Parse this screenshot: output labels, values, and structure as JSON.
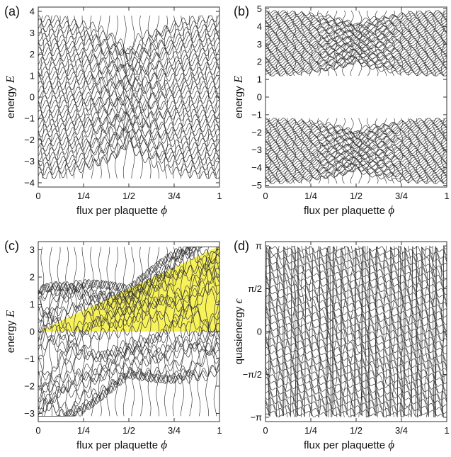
{
  "chart_data": [
    {
      "panel": "(a)",
      "type": "line",
      "xlabel": "flux per plaquette",
      "xlabel_symbol": "ϕ",
      "ylabel": "energy",
      "ylabel_symbol": "E",
      "xlim": [
        0,
        1
      ],
      "ylim": [
        -4.2,
        4.2
      ],
      "xticks": [
        0,
        0.25,
        0.5,
        0.75,
        1
      ],
      "xtick_labels": [
        "0",
        "1/4",
        "1/2",
        "3/4",
        "1"
      ],
      "yticks": [
        -4,
        -3,
        -2,
        -1,
        0,
        1,
        2,
        3,
        4
      ],
      "ytick_labels": [
        "−4",
        "−3",
        "−2",
        "−1",
        "0",
        "1",
        "2",
        "3",
        "4"
      ],
      "bands": [
        [
          -3.8,
          3.8
        ]
      ],
      "shaded": null
    },
    {
      "panel": "(b)",
      "type": "line",
      "xlabel": "flux per plaquette",
      "xlabel_symbol": "ϕ",
      "ylabel": "energy",
      "ylabel_symbol": "E",
      "xlim": [
        0,
        1
      ],
      "ylim": [
        -5.1,
        5.1
      ],
      "xticks": [
        0,
        0.25,
        0.5,
        0.75,
        1
      ],
      "xtick_labels": [
        "0",
        "1/4",
        "1/2",
        "3/4",
        "1"
      ],
      "yticks": [
        -5,
        -4,
        -3,
        -2,
        -1,
        0,
        1,
        2,
        3,
        4,
        5
      ],
      "ytick_labels": [
        "−5",
        "−4",
        "−3",
        "−2",
        "−1",
        "0",
        "1",
        "2",
        "3",
        "4",
        "5"
      ],
      "bands": [
        [
          1.2,
          4.9
        ],
        [
          -4.9,
          -1.2
        ]
      ],
      "shaded": null
    },
    {
      "panel": "(c)",
      "type": "line",
      "xlabel": "flux per plaquette",
      "xlabel_symbol": "ϕ",
      "ylabel": "energy",
      "ylabel_symbol": "E",
      "xlim": [
        0,
        1
      ],
      "ylim": [
        -3.3,
        3.3
      ],
      "xticks": [
        0,
        0.25,
        0.5,
        0.75,
        1
      ],
      "xtick_labels": [
        "0",
        "1/4",
        "1/2",
        "3/4",
        "1"
      ],
      "yticks": [
        -3,
        -2,
        -1,
        0,
        1,
        2,
        3
      ],
      "ytick_labels": [
        "−3",
        "−2",
        "−1",
        "0",
        "1",
        "2",
        "3"
      ],
      "bands": [
        [
          -3.1,
          3.1
        ]
      ],
      "shaded": {
        "polygon": [
          [
            0,
            0
          ],
          [
            1,
            0
          ],
          [
            1,
            3.14159
          ]
        ],
        "color": "#f7f25a"
      }
    },
    {
      "panel": "(d)",
      "type": "line",
      "xlabel": "flux per plaquette",
      "xlabel_symbol": "ϕ",
      "ylabel": "quasienergy",
      "ylabel_symbol": "ϵ",
      "xlim": [
        0,
        1
      ],
      "ylim": [
        -3.3,
        3.3
      ],
      "xticks": [
        0,
        0.25,
        0.5,
        0.75,
        1
      ],
      "xtick_labels": [
        "0",
        "1/4",
        "1/2",
        "3/4",
        "1"
      ],
      "yticks": [
        -3.14159,
        -1.5708,
        0,
        1.5708,
        3.14159
      ],
      "ytick_labels": [
        "−π",
        "−π/2",
        "0",
        "π/2",
        "π"
      ],
      "bands": [
        [
          -3.14159,
          3.14159
        ]
      ],
      "shaded": null
    }
  ]
}
